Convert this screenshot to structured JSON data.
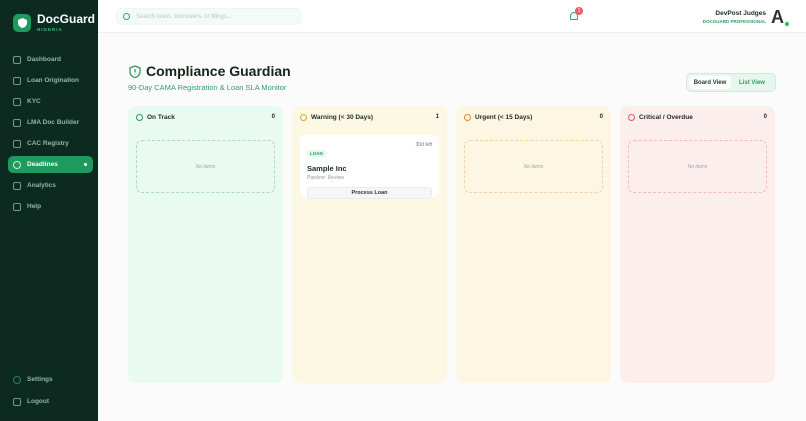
{
  "brand": {
    "name": "DocGuard",
    "sub": "NIGERIA"
  },
  "sidebar": {
    "items": [
      {
        "label": "Dashboard",
        "icon": "grid-icon"
      },
      {
        "label": "Loan Origination",
        "icon": "briefcase-icon"
      },
      {
        "label": "KYC",
        "icon": "user-check-icon"
      },
      {
        "label": "LMA Doc Builder",
        "icon": "document-icon"
      },
      {
        "label": "CAC Registry",
        "icon": "shield-check-icon"
      },
      {
        "label": "Deadlines",
        "icon": "alert-circle-icon",
        "active": true
      },
      {
        "label": "Analytics",
        "icon": "bar-chart-icon"
      },
      {
        "label": "Help",
        "icon": "help-icon"
      }
    ],
    "settings": "Settings",
    "logout": "Logout"
  },
  "header": {
    "search_placeholder": "Search loans, borrowers, or filings...",
    "notifications": "1",
    "user": {
      "name": "DevPost Judges",
      "role": "DOCGUARD PROFESSIONAL",
      "avatar": "A"
    }
  },
  "page": {
    "title": "Compliance Guardian",
    "subtitle": "90-Day CAMA Registration & Loan SLA Monitor",
    "views": [
      "Board View",
      "List View"
    ],
    "active_view": "Board View"
  },
  "columns": [
    {
      "title": "On Track",
      "count": "0",
      "bg": "#e9faf1",
      "accent": "#2e9b62",
      "empty": "No items"
    },
    {
      "title": "Warning (< 30 Days)",
      "count": "1",
      "bg": "#fdf8e4",
      "accent": "#e0a82e",
      "cards": [
        {
          "tag": "LOAN",
          "due": "30d left",
          "name": "Sample Inc",
          "pipeline": "Pipeline: Review",
          "action": "Process Loan"
        }
      ]
    },
    {
      "title": "Urgent (< 15 Days)",
      "count": "0",
      "bg": "#fdf6e2",
      "accent": "#e08a2e",
      "empty": "No items"
    },
    {
      "title": "Critical / Overdue",
      "count": "0",
      "bg": "#fdeeee",
      "accent": "#e05a5a",
      "empty": "No items"
    }
  ]
}
